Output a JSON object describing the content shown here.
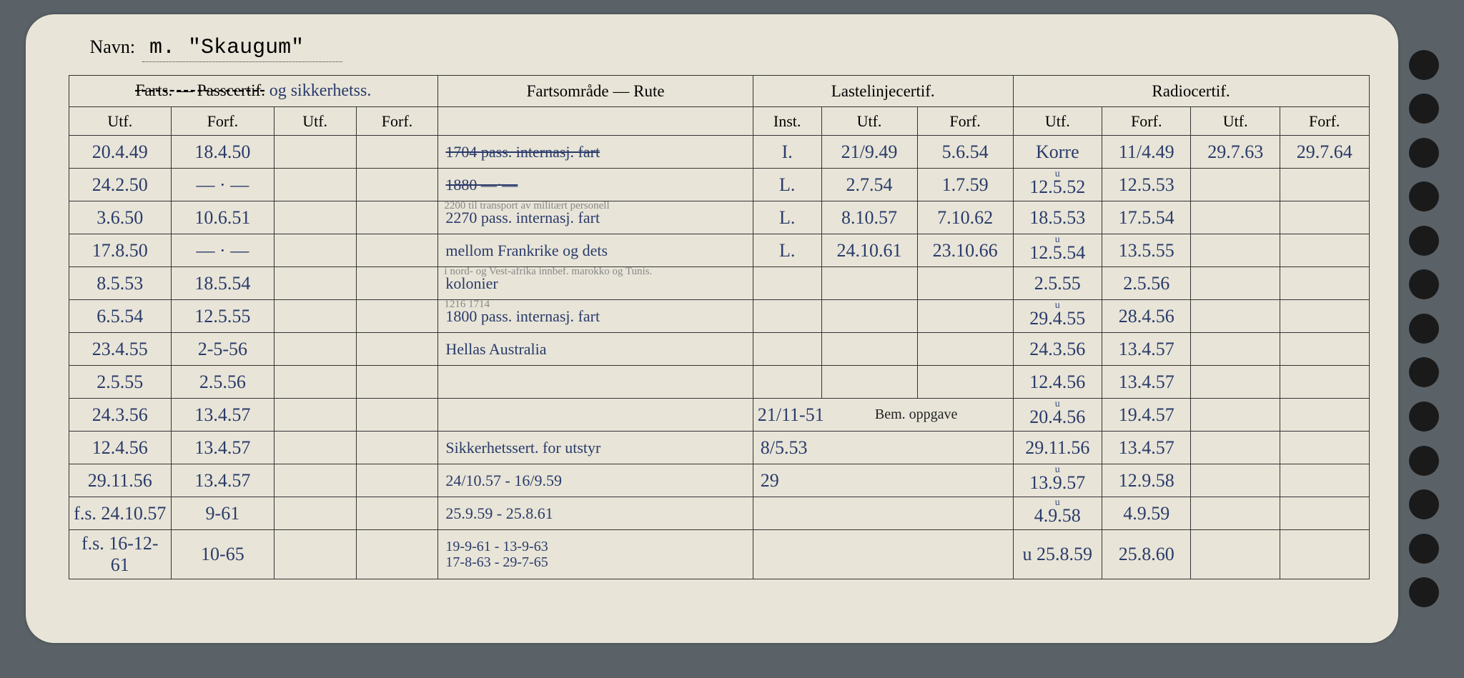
{
  "header": {
    "navn_label": "Navn:",
    "navn_value": "m. \"Skaugum\""
  },
  "sections": {
    "passcertif": "Farts. — Passcertif.",
    "passcertif_annotation": "og sikkerhetss.",
    "fartsomrade": "Fartsområde — Rute",
    "lastelinje": "Lastelinjecertif.",
    "radio": "Radiocertif."
  },
  "col_headers": {
    "utf": "Utf.",
    "forf": "Forf.",
    "inst": "Inst."
  },
  "bem_oppgave": "Bem. oppgave",
  "col_widths": {
    "c1": "7%",
    "c2": "7%",
    "c3": "6%",
    "c4": "6%",
    "c5": "22%",
    "c6": "5%",
    "c7": "7%",
    "c8": "7%",
    "c9": "7%",
    "c10": "7%",
    "c11": "7%",
    "c12": "7%"
  },
  "rows": [
    {
      "c1": "20.4.49",
      "c2": "18.4.50",
      "c3": "",
      "c4": "",
      "c5": "1704 pass. internasj. fart",
      "c5_strike": true,
      "c6": "I.",
      "c7": "21/9.49",
      "c8": "5.6.54",
      "c9": "Korre",
      "c10": "11/4.49",
      "c11": "29.7.63",
      "c12": "29.7.64"
    },
    {
      "c1": "24.2.50",
      "c2": "— · —",
      "c3": "",
      "c4": "",
      "c5": "1880  —·—",
      "c5_strike": true,
      "c6": "L.",
      "c7": "2.7.54",
      "c8": "1.7.59",
      "c9": "12.5.52",
      "c9_u": true,
      "c10": "12.5.53",
      "c11": "",
      "c12": ""
    },
    {
      "c1": "3.6.50",
      "c2": "10.6.51",
      "c3": "",
      "c4": "",
      "c5": "2270 pass. internasj. fart",
      "c5_super": "2200 til transport av militært personell",
      "c6": "L.",
      "c7": "8.10.57",
      "c8": "7.10.62",
      "c9": "18.5.53",
      "c10": "17.5.54",
      "c11": "",
      "c12": ""
    },
    {
      "c1": "17.8.50",
      "c2": "— · —",
      "c3": "",
      "c4": "",
      "c5": "mellom Frankrike og dets",
      "c6": "L.",
      "c7": "24.10.61",
      "c8": "23.10.66",
      "c9": "12.5.54",
      "c9_u": true,
      "c10": "13.5.55",
      "c11": "",
      "c12": ""
    },
    {
      "c1": "8.5.53",
      "c2": "18.5.54",
      "c3": "",
      "c4": "",
      "c5": "kolonier",
      "c5_super": "i nord- og Vest-afrika innbef. marokko og Tunis.",
      "c6": "",
      "c7": "",
      "c8": "",
      "c9": "2.5.55",
      "c10": "2.5.56",
      "c11": "",
      "c12": ""
    },
    {
      "c1": "6.5.54",
      "c2": "12.5.55",
      "c3": "",
      "c4": "",
      "c5": "1800 pass. internasj. fart",
      "c5_super": "1216 1714",
      "c5_strike_partial": "1800",
      "c6": "",
      "c7": "",
      "c8": "",
      "c9": "29.4.55",
      "c9_u": true,
      "c10": "28.4.56",
      "c11": "",
      "c12": ""
    },
    {
      "c1": "23.4.55",
      "c2": "2-5-56",
      "c3": "",
      "c4": "",
      "c5": "Hellas Australia",
      "c6": "",
      "c7": "",
      "c8": "",
      "c9": "24.3.56",
      "c10": "13.4.57",
      "c11": "",
      "c12": ""
    },
    {
      "c1": "2.5.55",
      "c2": "2.5.56",
      "c3": "",
      "c4": "",
      "c5": "",
      "c6_merged": true,
      "c6": "",
      "c7": "",
      "c8": "",
      "c9": "12.4.56",
      "c10": "13.4.57",
      "c11": "",
      "c12": ""
    },
    {
      "c1": "24.3.56",
      "c2": "13.4.57",
      "c3": "",
      "c4": "",
      "c5": "",
      "bem_row": true,
      "bem_left": "21/11-51",
      "c9": "20.4.56",
      "c9_u": true,
      "c10": "19.4.57",
      "c11": "",
      "c12": ""
    },
    {
      "c1": "12.4.56",
      "c2": "13.4.57",
      "c3": "",
      "c4": "",
      "c5": "Sikkerhetssert. for utstyr",
      "c6_span": "8/5.53",
      "c9": "29.11.56",
      "c10": "13.4.57",
      "c11": "",
      "c12": ""
    },
    {
      "c1": "29.11.56",
      "c2": "13.4.57",
      "c3": "",
      "c4": "",
      "c5": "24/10.57 - 16/9.59",
      "c6_span": "29",
      "c9": "13.9.57",
      "c9_u": true,
      "c10": "12.9.58",
      "c11": "",
      "c12": ""
    },
    {
      "c1": "f.s. 24.10.57",
      "c2": "9-61",
      "c3": "",
      "c4": "",
      "c5": "25.9.59 - 25.8.61",
      "c6_span": "",
      "c9": "4.9.58",
      "c9_u": true,
      "c10": "4.9.59",
      "c11": "",
      "c12": ""
    },
    {
      "c1": "f.s. 16-12-61",
      "c2": "10-65",
      "c3": "",
      "c4": "",
      "c5_double": [
        "19-9-61 - 13-9-63",
        "17-8-63 - 29-7-65"
      ],
      "c6_span": "",
      "c9": "u 25.8.59",
      "c10": "25.8.60",
      "c11": "",
      "c12": ""
    }
  ]
}
